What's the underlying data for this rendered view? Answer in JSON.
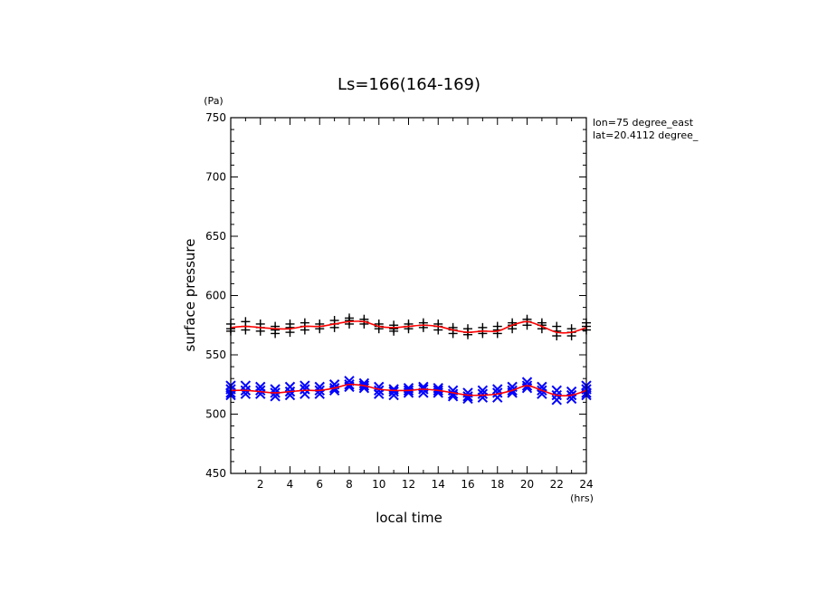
{
  "chart_data": {
    "type": "scatter",
    "title": "Ls=166(164-169)",
    "xlabel": "local time",
    "ylabel": "surface pressure",
    "x_unit": "(hrs)",
    "y_unit": "(Pa)",
    "xlim": [
      0,
      24
    ],
    "ylim": [
      450,
      750
    ],
    "x_ticks": [
      2,
      4,
      6,
      8,
      10,
      12,
      14,
      16,
      18,
      20,
      22,
      24
    ],
    "y_ticks": [
      450,
      500,
      550,
      600,
      650,
      700,
      750
    ],
    "grid": false,
    "annotations": [
      "lon=75 degree_east",
      "lat=20.4112 degree_"
    ],
    "series": [
      {
        "marker": "plus",
        "color": "#000000",
        "points": [
          [
            0,
            576
          ],
          [
            0,
            572
          ],
          [
            0,
            570
          ],
          [
            1,
            578
          ],
          [
            1,
            574
          ],
          [
            1,
            571
          ],
          [
            2,
            576
          ],
          [
            2,
            573
          ],
          [
            2,
            570
          ],
          [
            3,
            574
          ],
          [
            3,
            571
          ],
          [
            3,
            568
          ],
          [
            4,
            576
          ],
          [
            4,
            573
          ],
          [
            4,
            569
          ],
          [
            5,
            577
          ],
          [
            5,
            574
          ],
          [
            5,
            571
          ],
          [
            6,
            576
          ],
          [
            6,
            574
          ],
          [
            6,
            572
          ],
          [
            7,
            579
          ],
          [
            7,
            576
          ],
          [
            7,
            573
          ],
          [
            8,
            581
          ],
          [
            8,
            579
          ],
          [
            8,
            576
          ],
          [
            9,
            580
          ],
          [
            9,
            578
          ],
          [
            9,
            576
          ],
          [
            10,
            576
          ],
          [
            10,
            574
          ],
          [
            10,
            572
          ],
          [
            11,
            575
          ],
          [
            11,
            572
          ],
          [
            11,
            570
          ],
          [
            12,
            576
          ],
          [
            12,
            574
          ],
          [
            12,
            572
          ],
          [
            13,
            577
          ],
          [
            13,
            575
          ],
          [
            13,
            573
          ],
          [
            14,
            576
          ],
          [
            14,
            574
          ],
          [
            14,
            571
          ],
          [
            15,
            573
          ],
          [
            15,
            571
          ],
          [
            15,
            568
          ],
          [
            16,
            572
          ],
          [
            16,
            569
          ],
          [
            16,
            567
          ],
          [
            17,
            573
          ],
          [
            17,
            570
          ],
          [
            17,
            568
          ],
          [
            18,
            574
          ],
          [
            18,
            571
          ],
          [
            18,
            568
          ],
          [
            19,
            577
          ],
          [
            19,
            575
          ],
          [
            19,
            572
          ],
          [
            20,
            580
          ],
          [
            20,
            578
          ],
          [
            20,
            575
          ],
          [
            21,
            577
          ],
          [
            21,
            575
          ],
          [
            21,
            572
          ],
          [
            22,
            574
          ],
          [
            22,
            570
          ],
          [
            22,
            566
          ],
          [
            23,
            572
          ],
          [
            23,
            569
          ],
          [
            23,
            566
          ],
          [
            24,
            577
          ],
          [
            24,
            574
          ],
          [
            24,
            571
          ]
        ]
      },
      {
        "marker": "x",
        "color": "#0000ff",
        "points": [
          [
            0,
            524
          ],
          [
            0,
            521
          ],
          [
            0,
            518
          ],
          [
            0,
            516
          ],
          [
            1,
            524
          ],
          [
            1,
            520
          ],
          [
            1,
            517
          ],
          [
            2,
            523
          ],
          [
            2,
            520
          ],
          [
            2,
            517
          ],
          [
            3,
            521
          ],
          [
            3,
            518
          ],
          [
            3,
            515
          ],
          [
            4,
            523
          ],
          [
            4,
            519
          ],
          [
            4,
            516
          ],
          [
            5,
            524
          ],
          [
            5,
            521
          ],
          [
            5,
            517
          ],
          [
            6,
            523
          ],
          [
            6,
            520
          ],
          [
            6,
            517
          ],
          [
            7,
            525
          ],
          [
            7,
            522
          ],
          [
            7,
            520
          ],
          [
            8,
            528
          ],
          [
            8,
            525
          ],
          [
            8,
            523
          ],
          [
            9,
            526
          ],
          [
            9,
            524
          ],
          [
            9,
            522
          ],
          [
            10,
            523
          ],
          [
            10,
            520
          ],
          [
            10,
            517
          ],
          [
            11,
            521
          ],
          [
            11,
            519
          ],
          [
            11,
            516
          ],
          [
            12,
            522
          ],
          [
            12,
            520
          ],
          [
            12,
            518
          ],
          [
            13,
            523
          ],
          [
            13,
            521
          ],
          [
            13,
            518
          ],
          [
            14,
            522
          ],
          [
            14,
            520
          ],
          [
            14,
            518
          ],
          [
            15,
            520
          ],
          [
            15,
            517
          ],
          [
            15,
            515
          ],
          [
            16,
            518
          ],
          [
            16,
            515
          ],
          [
            16,
            513
          ],
          [
            17,
            520
          ],
          [
            17,
            517
          ],
          [
            17,
            514
          ],
          [
            18,
            521
          ],
          [
            18,
            518
          ],
          [
            18,
            514
          ],
          [
            19,
            523
          ],
          [
            19,
            520
          ],
          [
            19,
            518
          ],
          [
            20,
            527
          ],
          [
            20,
            524
          ],
          [
            20,
            522
          ],
          [
            21,
            523
          ],
          [
            21,
            520
          ],
          [
            21,
            517
          ],
          [
            22,
            520
          ],
          [
            22,
            516
          ],
          [
            22,
            512
          ],
          [
            23,
            519
          ],
          [
            23,
            516
          ],
          [
            23,
            513
          ],
          [
            24,
            524
          ],
          [
            24,
            521
          ],
          [
            24,
            518
          ],
          [
            24,
            516
          ]
        ]
      },
      {
        "marker": "line",
        "color": "#ff0000",
        "x": [
          0,
          1,
          2,
          3,
          4,
          5,
          6,
          7,
          8,
          9,
          10,
          11,
          12,
          13,
          14,
          15,
          16,
          17,
          18,
          19,
          20,
          21,
          22,
          23,
          24
        ],
        "values": [
          573,
          574,
          573,
          572,
          572,
          574,
          574,
          576,
          578,
          578,
          574,
          573,
          574,
          575,
          574,
          571,
          569,
          570,
          570,
          575,
          578,
          574,
          569,
          569,
          573
        ]
      },
      {
        "marker": "line",
        "color": "#ff0000",
        "x": [
          0,
          1,
          2,
          3,
          4,
          5,
          6,
          7,
          8,
          9,
          10,
          11,
          12,
          13,
          14,
          15,
          16,
          17,
          18,
          19,
          20,
          21,
          22,
          23,
          24
        ],
        "values": [
          520,
          520,
          519,
          518,
          519,
          520,
          520,
          522,
          525,
          524,
          521,
          520,
          520,
          521,
          520,
          518,
          516,
          516,
          517,
          520,
          524,
          520,
          516,
          516,
          520
        ]
      }
    ]
  }
}
